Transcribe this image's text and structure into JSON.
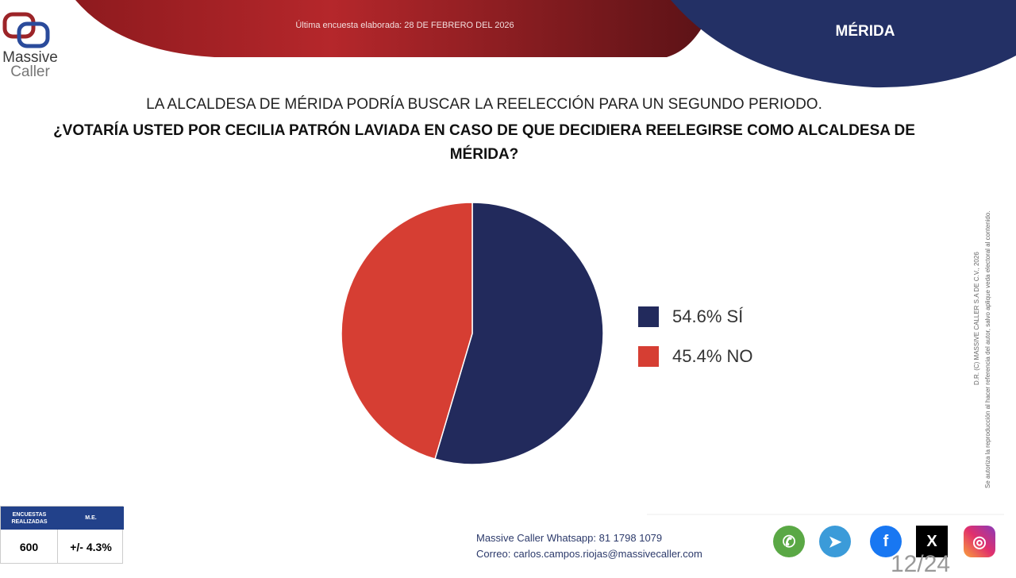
{
  "header": {
    "date_text": "Última encuesta elaborada: 28 DE FEBRERO DEL 2026",
    "city": "MÉRIDA",
    "logo_line1": "Massive",
    "logo_line2": "Caller"
  },
  "question": {
    "line1": "LA ALCALDESA DE MÉRIDA PODRÍA BUSCAR LA REELECCIÓN PARA UN SEGUNDO PERIODO.",
    "line2": "¿VOTARÍA USTED POR CECILIA PATRÓN LAVIADA EN CASO DE QUE DECIDIERA REELEGIRSE COMO ALCALDESA DE MÉRIDA?"
  },
  "chart_data": {
    "type": "pie",
    "categories": [
      "SÍ",
      "NO"
    ],
    "values": [
      54.6,
      45.4
    ],
    "labels": [
      "54.6% SÍ",
      "45.4% NO"
    ],
    "colors": [
      "#222a5c",
      "#d63e33"
    ],
    "legend": "right"
  },
  "side_text": {
    "line1": "D.R. (C) MASSIVE CALLER S.A DE C.V., 2026",
    "line2": "Se autoriza la reproducción al hacer referencia del autor, salvo aplique veda electoral al contenido."
  },
  "stats": {
    "surveys_label": "ENCUESTAS REALIZADAS",
    "surveys_value": "600",
    "me_label": "M.E.",
    "me_value": "+/- 4.3%"
  },
  "footer": {
    "whatsapp": "Massive Caller Whatsapp: 81 1798 1079",
    "email": "Correo: carlos.campos.riojas@massivecaller.com",
    "page": "12/24"
  },
  "social": [
    "whatsapp-icon",
    "telegram-icon",
    "facebook-icon",
    "x-icon",
    "instagram-icon"
  ]
}
